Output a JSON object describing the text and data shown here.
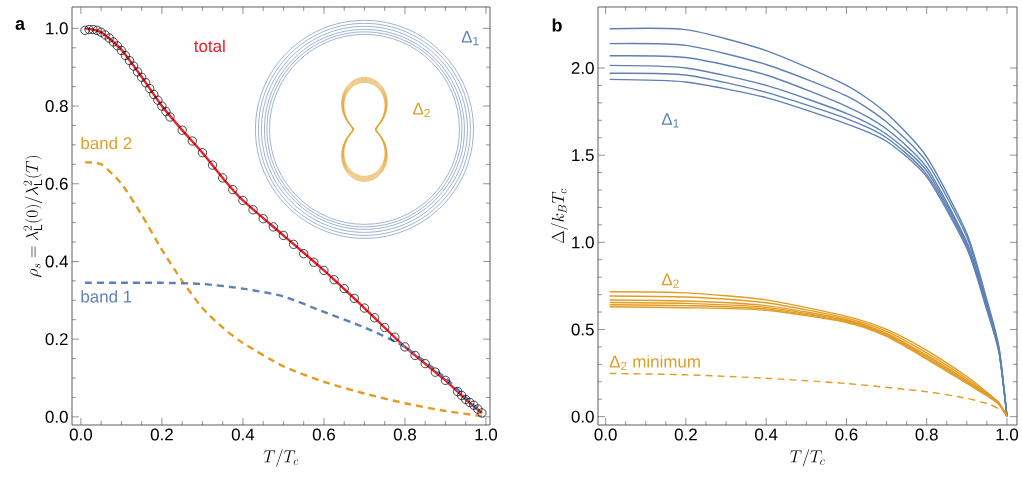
{
  "chart_data": [
    {
      "type": "line",
      "title": "a",
      "xlabel": "T/T_c",
      "ylabel": "\\rho_s = \\lambda_\\mathrm{L}^2(0)/\\lambda_\\mathrm{L}^2(T)",
      "xlim": [
        -0.022,
        1.01
      ],
      "ylim": [
        -0.021,
        1.055
      ],
      "xticks": [
        {
          "value": 0,
          "label": "0.0"
        },
        {
          "value": 0.2,
          "label": "0.2"
        },
        {
          "value": 0.4,
          "label": "0.4"
        },
        {
          "value": 0.6,
          "label": "0.6"
        },
        {
          "value": 0.8,
          "label": "0.8"
        },
        {
          "value": 1,
          "label": "1.0"
        }
      ],
      "yticks": [
        {
          "value": 0,
          "label": "0.0"
        },
        {
          "value": 0.2,
          "label": "0.2"
        },
        {
          "value": 0.4,
          "label": "0.4"
        },
        {
          "value": 0.6,
          "label": "0.6"
        },
        {
          "value": 0.8,
          "label": "0.8"
        },
        {
          "value": 1,
          "label": "1.0"
        }
      ],
      "annotations": [
        "Δ$_{1}$",
        "Δ$_{2}$"
      ],
      "series": [
        {
          "name": "total",
          "color": "#ee1c25",
          "line_style": "solid",
          "x": [
            0.01,
            0.05,
            0.1,
            0.15,
            0.2,
            0.25,
            0.3,
            0.35,
            0.4,
            0.5,
            0.6,
            0.7,
            0.8,
            0.9,
            0.95,
            0.99
          ],
          "values": [
            1.0,
            0.99,
            0.945,
            0.875,
            0.8,
            0.738,
            0.68,
            0.615,
            0.557,
            0.467,
            0.377,
            0.28,
            0.18,
            0.094,
            0.045,
            0.01
          ]
        },
        {
          "name": "band 2",
          "color": "#e19c24",
          "line_style": "dashed",
          "x": [
            0.01,
            0.05,
            0.1,
            0.15,
            0.2,
            0.25,
            0.3,
            0.35,
            0.4,
            0.5,
            0.6,
            0.7,
            0.8,
            0.9,
            0.99
          ],
          "values": [
            0.655,
            0.65,
            0.6,
            0.52,
            0.43,
            0.35,
            0.28,
            0.23,
            0.19,
            0.13,
            0.09,
            0.06,
            0.035,
            0.015,
            0.002
          ]
        },
        {
          "name": "band 1",
          "color": "#5e81b5",
          "line_style": "dashed",
          "x": [
            0.01,
            0.1,
            0.2,
            0.3,
            0.4,
            0.5,
            0.6,
            0.7,
            0.8,
            0.9,
            0.95,
            0.99
          ],
          "values": [
            0.345,
            0.345,
            0.345,
            0.342,
            0.33,
            0.31,
            0.27,
            0.23,
            0.18,
            0.1,
            0.05,
            0.01
          ]
        },
        {
          "type": "scatter",
          "marker": "circle",
          "color": "#000000",
          "x": [
            0.01,
            0.02,
            0.03,
            0.04,
            0.05,
            0.06,
            0.07,
            0.08,
            0.09,
            0.1,
            0.11,
            0.12,
            0.13,
            0.14,
            0.15,
            0.16,
            0.17,
            0.18,
            0.19,
            0.2,
            0.21,
            0.22,
            0.25,
            0.275,
            0.3,
            0.325,
            0.35,
            0.375,
            0.4,
            0.425,
            0.45,
            0.475,
            0.5,
            0.525,
            0.55,
            0.575,
            0.6,
            0.625,
            0.65,
            0.675,
            0.7,
            0.725,
            0.75,
            0.775,
            0.8,
            0.825,
            0.85,
            0.875,
            0.9,
            0.93,
            0.94,
            0.95,
            0.96,
            0.97,
            0.98,
            0.99
          ],
          "values": [
            0.995,
            0.997,
            0.997,
            0.995,
            0.99,
            0.983,
            0.975,
            0.965,
            0.955,
            0.943,
            0.93,
            0.917,
            0.903,
            0.888,
            0.874,
            0.86,
            0.845,
            0.83,
            0.815,
            0.8,
            0.786,
            0.772,
            0.738,
            0.71,
            0.68,
            0.648,
            0.615,
            0.585,
            0.557,
            0.533,
            0.51,
            0.489,
            0.467,
            0.444,
            0.42,
            0.398,
            0.377,
            0.353,
            0.33,
            0.305,
            0.28,
            0.255,
            0.23,
            0.205,
            0.18,
            0.158,
            0.137,
            0.115,
            0.094,
            0.065,
            0.055,
            0.045,
            0.037,
            0.03,
            0.02,
            0.01
          ]
        }
      ]
    },
    {
      "type": "line",
      "title": "b",
      "xlabel": "T/T_c",
      "ylabel": "\\Delta/k_B T_c",
      "xlim": [
        -0.019,
        1.025
      ],
      "ylim": [
        -0.048,
        2.35
      ],
      "xticks": [
        {
          "value": 0,
          "label": "0.0"
        },
        {
          "value": 0.2,
          "label": "0.2"
        },
        {
          "value": 0.4,
          "label": "0.4"
        },
        {
          "value": 0.6,
          "label": "0.6"
        },
        {
          "value": 0.8,
          "label": "0.8"
        },
        {
          "value": 1,
          "label": "1.0"
        }
      ],
      "yticks": [
        {
          "value": 0,
          "label": "0.0"
        },
        {
          "value": 0.5,
          "label": "0.5"
        },
        {
          "value": 1,
          "label": "1.0"
        },
        {
          "value": 1.5,
          "label": "1.5"
        },
        {
          "value": 2,
          "label": "2.0"
        }
      ],
      "annotations": [
        "Δ$_{1}$",
        "Δ$_{2}$"
      ],
      "series": [
        {
          "color": "#5e81b5",
          "line_style": "solid",
          "x": [
            0.01,
            0.2,
            0.4,
            0.6,
            0.7,
            0.8,
            0.9,
            0.95,
            0.98,
            1.0
          ],
          "values": [
            2.225,
            2.22,
            2.1,
            1.9,
            1.74,
            1.49,
            1.05,
            0.67,
            0.4,
            0
          ]
        },
        {
          "color": "#5e81b5",
          "line_style": "solid",
          "x": [
            0.01,
            0.2,
            0.4,
            0.6,
            0.7,
            0.8,
            0.9,
            0.95,
            0.98,
            1.0
          ],
          "values": [
            2.14,
            2.13,
            2.02,
            1.84,
            1.69,
            1.46,
            1.03,
            0.65,
            0.39,
            0
          ]
        },
        {
          "color": "#5e81b5",
          "line_style": "solid",
          "x": [
            0.01,
            0.2,
            0.4,
            0.6,
            0.7,
            0.8,
            0.9,
            0.95,
            0.98,
            1.0
          ],
          "values": [
            2.07,
            2.06,
            1.96,
            1.78,
            1.65,
            1.43,
            1.0,
            0.64,
            0.38,
            0
          ]
        },
        {
          "color": "#5e81b5",
          "line_style": "solid",
          "x": [
            0.01,
            0.2,
            0.4,
            0.6,
            0.7,
            0.8,
            0.9,
            0.95,
            0.98,
            1.0
          ],
          "values": [
            2.015,
            2.0,
            1.9,
            1.74,
            1.62,
            1.41,
            0.99,
            0.63,
            0.38,
            0
          ]
        },
        {
          "color": "#5e81b5",
          "line_style": "solid",
          "x": [
            0.01,
            0.2,
            0.4,
            0.6,
            0.7,
            0.8,
            0.9,
            0.95,
            0.98,
            1.0
          ],
          "values": [
            1.97,
            1.96,
            1.86,
            1.71,
            1.6,
            1.39,
            0.98,
            0.62,
            0.37,
            0
          ]
        },
        {
          "color": "#5e81b5",
          "line_style": "solid",
          "x": [
            0.01,
            0.2,
            0.4,
            0.6,
            0.7,
            0.8,
            0.9,
            0.95,
            0.98,
            1.0
          ],
          "values": [
            1.935,
            1.92,
            1.83,
            1.68,
            1.58,
            1.375,
            0.965,
            0.61,
            0.37,
            0
          ]
        },
        {
          "color": "#e19c24",
          "line_style": "solid",
          "x": [
            0.01,
            0.2,
            0.4,
            0.6,
            0.7,
            0.8,
            0.9,
            0.95,
            0.98,
            1.0
          ],
          "values": [
            0.716,
            0.71,
            0.67,
            0.575,
            0.5,
            0.38,
            0.23,
            0.14,
            0.08,
            0
          ]
        },
        {
          "color": "#e19c24",
          "line_style": "solid",
          "x": [
            0.01,
            0.2,
            0.4,
            0.6,
            0.7,
            0.8,
            0.9,
            0.95,
            0.98,
            1.0
          ],
          "values": [
            0.692,
            0.686,
            0.653,
            0.565,
            0.489,
            0.366,
            0.219,
            0.134,
            0.077,
            0
          ]
        },
        {
          "color": "#e19c24",
          "line_style": "solid",
          "x": [
            0.01,
            0.2,
            0.4,
            0.6,
            0.7,
            0.8,
            0.9,
            0.95,
            0.98,
            1.0
          ],
          "values": [
            0.669,
            0.663,
            0.637,
            0.556,
            0.478,
            0.353,
            0.208,
            0.129,
            0.075,
            0
          ]
        },
        {
          "color": "#e19c24",
          "line_style": "solid",
          "x": [
            0.01,
            0.2,
            0.4,
            0.6,
            0.7,
            0.8,
            0.9,
            0.95,
            0.98,
            1.0
          ],
          "values": [
            0.655,
            0.65,
            0.627,
            0.55,
            0.472,
            0.345,
            0.202,
            0.126,
            0.073,
            0
          ]
        },
        {
          "color": "#e19c24",
          "line_style": "solid",
          "x": [
            0.01,
            0.2,
            0.4,
            0.6,
            0.7,
            0.8,
            0.9,
            0.95,
            0.98,
            1.0
          ],
          "values": [
            0.642,
            0.637,
            0.618,
            0.545,
            0.466,
            0.337,
            0.196,
            0.123,
            0.071,
            0
          ]
        },
        {
          "color": "#e19c24",
          "line_style": "solid",
          "x": [
            0.01,
            0.2,
            0.4,
            0.6,
            0.7,
            0.8,
            0.9,
            0.95,
            0.98,
            1.0
          ],
          "values": [
            0.63,
            0.625,
            0.61,
            0.54,
            0.46,
            0.33,
            0.19,
            0.12,
            0.07,
            0
          ]
        },
        {
          "name": "Δ$_{2}$ minimum",
          "color": "#e19c24",
          "line_style": "dashed",
          "x": [
            0.01,
            0.2,
            0.4,
            0.6,
            0.8,
            0.9,
            0.95,
            0.98,
            1.0
          ],
          "values": [
            0.248,
            0.24,
            0.22,
            0.19,
            0.143,
            0.105,
            0.075,
            0.045,
            0.02
          ]
        }
      ]
    }
  ]
}
